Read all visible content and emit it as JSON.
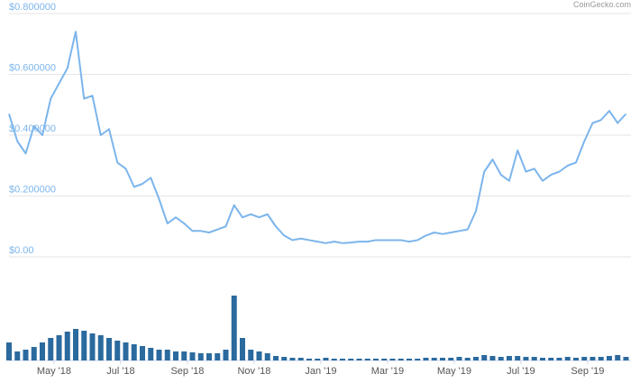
{
  "chart_data": {
    "type": "line",
    "watermark": "CoinGecko.com",
    "x": [
      2.65,
      2.9,
      3.15,
      3.4,
      3.65,
      3.9,
      4.15,
      4.4,
      4.65,
      4.9,
      5.15,
      5.4,
      5.65,
      5.9,
      6.15,
      6.4,
      6.65,
      6.9,
      7.15,
      7.4,
      7.65,
      7.9,
      8.15,
      8.4,
      8.65,
      8.9,
      9.15,
      9.4,
      9.65,
      9.9,
      10.15,
      10.4,
      10.65,
      10.9,
      11.15,
      11.4,
      11.65,
      11.9,
      12.15,
      12.4,
      12.65,
      12.9,
      13.15,
      13.4,
      13.65,
      13.9,
      14.15,
      14.4,
      14.65,
      14.9,
      15.15,
      15.4,
      15.65,
      15.9,
      16.15,
      16.4,
      16.65,
      16.9,
      17.15,
      17.4,
      17.65,
      17.9,
      18.15,
      18.4,
      18.65,
      18.9,
      19.15,
      19.4,
      19.65,
      19.9,
      20.15,
      20.4,
      20.65,
      20.9,
      21.15
    ],
    "series": [
      {
        "color": "#7cb5ec",
        "values": [
          0.47,
          0.38,
          0.34,
          0.43,
          0.4,
          0.52,
          0.57,
          0.62,
          0.74,
          0.52,
          0.53,
          0.4,
          0.42,
          0.31,
          0.29,
          0.23,
          0.24,
          0.26,
          0.19,
          0.11,
          0.13,
          0.11,
          0.085,
          0.085,
          0.08,
          0.09,
          0.1,
          0.17,
          0.13,
          0.14,
          0.13,
          0.14,
          0.1,
          0.07,
          0.055,
          0.06,
          0.055,
          0.05,
          0.045,
          0.05,
          0.045,
          0.047,
          0.05,
          0.05,
          0.055,
          0.055,
          0.055,
          0.055,
          0.05,
          0.055,
          0.07,
          0.08,
          0.075,
          0.08,
          0.085,
          0.09,
          0.15,
          0.28,
          0.32,
          0.27,
          0.25,
          0.35,
          0.28,
          0.29,
          0.25,
          0.27,
          0.28,
          0.3,
          0.31,
          0.38,
          0.44,
          0.45,
          0.48,
          0.44,
          0.47
        ]
      },
      {
        "color": "#2b6a9e",
        "axis": "y2",
        "values": [
          20,
          10,
          12,
          15,
          20,
          25,
          28,
          32,
          35,
          33,
          30,
          28,
          25,
          22,
          20,
          18,
          16,
          14,
          12,
          12,
          10,
          10,
          9,
          8,
          8,
          8,
          12,
          72,
          25,
          12,
          10,
          8,
          5,
          4,
          3,
          3,
          2,
          2,
          3,
          2,
          2,
          2,
          2,
          2,
          2,
          2,
          2,
          2,
          2,
          2,
          3,
          3,
          3,
          3,
          4,
          3,
          4,
          6,
          5,
          4,
          5,
          5,
          4,
          4,
          3,
          3,
          3,
          4,
          3,
          4,
          4,
          4,
          5,
          6,
          4
        ]
      }
    ],
    "xlim": [
      2.65,
      21.3
    ],
    "xticks": [
      {
        "value": 4,
        "label": "May '18"
      },
      {
        "value": 6,
        "label": "Jul '18"
      },
      {
        "value": 8,
        "label": "Sep '18"
      },
      {
        "value": 10,
        "label": "Nov '18"
      },
      {
        "value": 12,
        "label": "Jan '19"
      },
      {
        "value": 14,
        "label": "Mar '19"
      },
      {
        "value": 16,
        "label": "May '19"
      },
      {
        "value": 18,
        "label": "Jul '19"
      },
      {
        "value": 20,
        "label": "Sep '19"
      }
    ],
    "ylim": [
      0,
      0.8
    ],
    "yticks": [
      {
        "value": 0,
        "label": "$0.00"
      },
      {
        "value": 0.2,
        "label": "$0.200000"
      },
      {
        "value": 0.4,
        "label": "$0.400000"
      },
      {
        "value": 0.6,
        "label": "$0.600000"
      },
      {
        "value": 0.8,
        "label": "$0.800000"
      }
    ],
    "y2lim": [
      0,
      100
    ],
    "grid": true
  }
}
